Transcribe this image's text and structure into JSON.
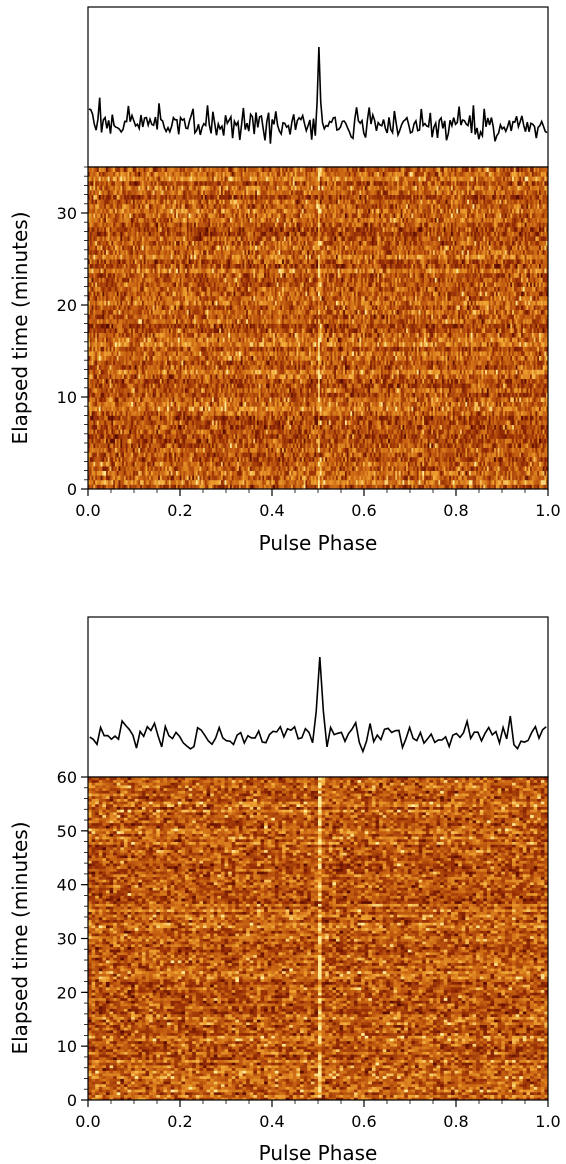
{
  "chart_data": [
    {
      "type": "heatmap",
      "xlabel": "Pulse Phase",
      "ylabel": "Elapsed time (minutes)",
      "xlim": [
        0.0,
        1.0
      ],
      "ylim": [
        0,
        35
      ],
      "x_ticks": [
        "0.0",
        "0.2",
        "0.4",
        "0.6",
        "0.8",
        "1.0"
      ],
      "y_ticks": [
        "0",
        "10",
        "20",
        "30"
      ],
      "y_tick_values": [
        0,
        10,
        20,
        30
      ],
      "colormap": "afmhot",
      "n_phase_bins": 256,
      "n_subints": 70,
      "pulse_phase": 0.5,
      "profile": {
        "type": "line",
        "peak_phase": 0.5,
        "color": "#000000"
      },
      "seed": 7
    },
    {
      "type": "heatmap",
      "xlabel": "Pulse Phase",
      "ylabel": "Elapsed time (minutes)",
      "xlim": [
        0.0,
        1.0
      ],
      "ylim": [
        0,
        60
      ],
      "x_ticks": [
        "0.0",
        "0.2",
        "0.4",
        "0.6",
        "0.8",
        "1.0"
      ],
      "y_ticks": [
        "0",
        "10",
        "20",
        "30",
        "40",
        "50",
        "60"
      ],
      "y_tick_values": [
        0,
        10,
        20,
        30,
        40,
        50,
        60
      ],
      "colormap": "afmhot",
      "n_phase_bins": 128,
      "n_subints": 120,
      "pulse_phase": 0.5,
      "profile": {
        "type": "line",
        "peak_phase": 0.5,
        "color": "#000000"
      },
      "seed": 13
    }
  ]
}
